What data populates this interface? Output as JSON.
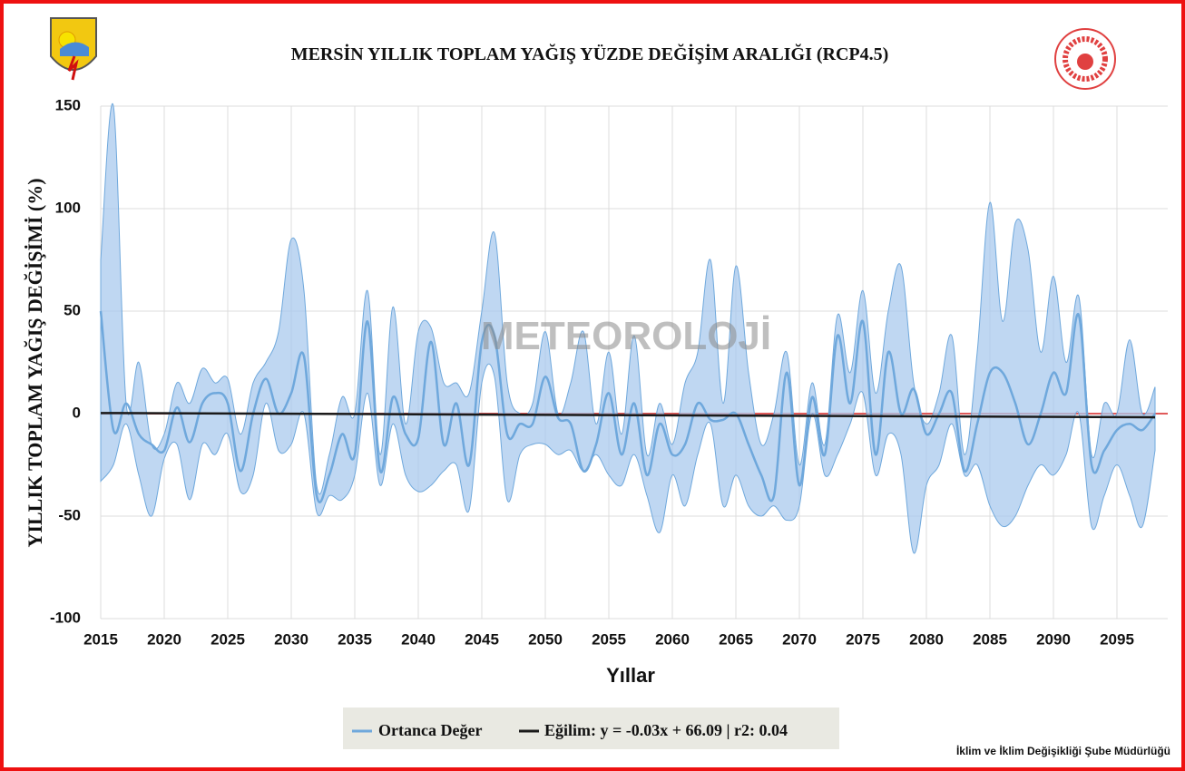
{
  "chart_data": {
    "type": "line",
    "title": "MERSİN YILLIK TOPLAM YAĞIŞ YÜZDE DEĞİŞİM ARALIĞI (RCP4.5)",
    "xlabel": "Yıllar",
    "ylabel": "YILLIK TOPLAM YAĞIŞ DEĞİŞİMİ (%)",
    "watermark": "METEOROLOJİ",
    "footer": "İklim ve İklim Değişikliği Şube Müdürlüğü",
    "x": [
      2015,
      2016,
      2017,
      2018,
      2019,
      2020,
      2021,
      2022,
      2023,
      2024,
      2025,
      2026,
      2027,
      2028,
      2029,
      2030,
      2031,
      2032,
      2033,
      2034,
      2035,
      2036,
      2037,
      2038,
      2039,
      2040,
      2041,
      2042,
      2043,
      2044,
      2045,
      2046,
      2047,
      2048,
      2049,
      2050,
      2051,
      2052,
      2053,
      2054,
      2055,
      2056,
      2057,
      2058,
      2059,
      2060,
      2061,
      2062,
      2063,
      2064,
      2065,
      2066,
      2067,
      2068,
      2069,
      2070,
      2071,
      2072,
      2073,
      2074,
      2075,
      2076,
      2077,
      2078,
      2079,
      2080,
      2081,
      2082,
      2083,
      2084,
      2085,
      2086,
      2087,
      2088,
      2089,
      2090,
      2091,
      2092,
      2093,
      2094,
      2095,
      2096,
      2097,
      2098
    ],
    "band": {
      "color": "#a9c9ee",
      "upper": [
        75,
        150,
        5,
        25,
        -15,
        -10,
        15,
        5,
        22,
        15,
        17,
        -10,
        15,
        25,
        40,
        85,
        60,
        -35,
        -20,
        8,
        0,
        60,
        -20,
        52,
        -5,
        40,
        42,
        15,
        15,
        10,
        50,
        88,
        15,
        0,
        5,
        40,
        0,
        15,
        40,
        -5,
        30,
        -10,
        38,
        -20,
        5,
        -15,
        15,
        30,
        75,
        5,
        72,
        20,
        -15,
        0,
        30,
        -25,
        15,
        -15,
        48,
        20,
        60,
        10,
        50,
        72,
        15,
        -5,
        10,
        38,
        -20,
        30,
        103,
        45,
        93,
        80,
        30,
        67,
        25,
        57,
        -20,
        5,
        0,
        36,
        0,
        13
      ],
      "lower": [
        -33,
        -25,
        -5,
        -30,
        -50,
        -22,
        -15,
        -42,
        -15,
        -20,
        -10,
        -38,
        -30,
        5,
        -18,
        -15,
        0,
        -48,
        -40,
        -42,
        -30,
        10,
        -35,
        -5,
        -30,
        -38,
        -35,
        -28,
        -25,
        -47,
        15,
        18,
        -42,
        -20,
        -15,
        -15,
        -20,
        -18,
        -28,
        -20,
        -30,
        -35,
        -20,
        -40,
        -58,
        -30,
        -45,
        -20,
        -5,
        -45,
        -30,
        -45,
        -50,
        -45,
        -52,
        -45,
        0,
        -30,
        -20,
        -5,
        10,
        -30,
        -10,
        -20,
        -68,
        -35,
        -25,
        -5,
        -30,
        -25,
        -45,
        -55,
        -50,
        -35,
        -25,
        -30,
        -20,
        0,
        -55,
        -40,
        -25,
        -40,
        -55,
        -18
      ]
    },
    "series": [
      {
        "name": "Ortanca Değer",
        "color": "#6fa8dc",
        "values": [
          50,
          -8,
          5,
          -10,
          -15,
          -18,
          3,
          -14,
          5,
          10,
          5,
          -28,
          0,
          17,
          0,
          10,
          28,
          -40,
          -30,
          -10,
          -20,
          45,
          -28,
          8,
          -10,
          -12,
          35,
          -15,
          5,
          -25,
          35,
          38,
          -10,
          -5,
          -5,
          18,
          -2,
          -5,
          -28,
          -15,
          10,
          -20,
          5,
          -30,
          -5,
          -20,
          -15,
          5,
          -3,
          -3,
          0,
          -15,
          -30,
          -40,
          20,
          -35,
          8,
          -20,
          38,
          5,
          45,
          -20,
          30,
          0,
          12,
          -10,
          0,
          10,
          -28,
          -5,
          20,
          20,
          5,
          -15,
          0,
          20,
          10,
          48,
          -25,
          -18,
          -8,
          -5,
          -8,
          0
        ]
      }
    ],
    "trend": {
      "name": "Eğilim: y = -0.03x + 66.09 | r2: 0.04",
      "color": "#1a1a1a",
      "x": [
        2015,
        2098
      ],
      "values": [
        0.3,
        -1.8
      ]
    },
    "zero_line_color": "#e05a5a",
    "xlim": [
      2015,
      2099
    ],
    "xticks": [
      2015,
      2020,
      2025,
      2030,
      2035,
      2040,
      2045,
      2050,
      2055,
      2060,
      2065,
      2070,
      2075,
      2080,
      2085,
      2090,
      2095
    ],
    "ylim": [
      -100,
      150
    ],
    "yticks": [
      -100,
      -50,
      0,
      50,
      100,
      150
    ],
    "grid": true
  }
}
